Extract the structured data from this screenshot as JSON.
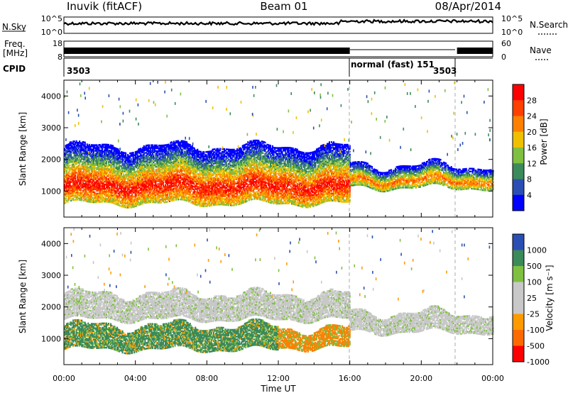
{
  "header": {
    "station": "Inuvik (fitACF)",
    "beam": "Beam 01",
    "date": "08/Apr/2014"
  },
  "noise_panel": {
    "left_label": "N.Sky",
    "right_label": "N.Search",
    "left_ticks": [
      "10^5",
      "10^0"
    ],
    "right_ticks": [
      "10^5",
      "10^0"
    ]
  },
  "freq_panel": {
    "left_label_1": "Freq.",
    "left_label_2": "[MHz]",
    "right_label": "Nave",
    "left_ticks": [
      "18",
      "8"
    ],
    "right_ticks": [
      "60",
      "0"
    ]
  },
  "cpid_panel": {
    "label": "CPID",
    "segments": [
      {
        "text": "3503",
        "start_h": 0,
        "end_h": 16
      },
      {
        "text": "normal (fast) 151",
        "start_h": 16,
        "end_h": 22
      },
      {
        "text": "3503",
        "start_h": 22,
        "end_h": 24
      }
    ]
  },
  "x_axis": {
    "label": "Time UT",
    "ticks": [
      "00:00",
      "04:00",
      "08:00",
      "12:00",
      "16:00",
      "20:00",
      "00:00"
    ]
  },
  "power_panel": {
    "ylabel": "Slant Range [km]",
    "yticks": [
      "4000",
      "3000",
      "2000",
      "1000"
    ],
    "colorbar_label": "Power [dB]",
    "colorbar_ticks": [
      "28",
      "24",
      "20",
      "16",
      "12",
      "8",
      "4"
    ]
  },
  "velocity_panel": {
    "ylabel": "Slant Range [km]",
    "yticks": [
      "4000",
      "3000",
      "2000",
      "1000"
    ],
    "colorbar_label": "Velocity [m s⁻¹]",
    "colorbar_ticks": [
      "1000",
      "500",
      "100",
      "25",
      "-25",
      "-100",
      "-500",
      "-1000"
    ]
  },
  "chart_data": [
    {
      "type": "heatmap",
      "quantity": "Power",
      "x_range_hours": [
        0,
        24
      ],
      "y_range_km": [
        180,
        4500
      ],
      "color_scale_dB": [
        0,
        32
      ],
      "colors": [
        "#0000ff",
        "#2a4fb4",
        "#3a8a5a",
        "#7fc040",
        "#f0c000",
        "#ff8000",
        "#ff4000",
        "#ff0000"
      ],
      "vertical_markers_h": [
        16,
        22
      ],
      "bands": [
        {
          "t_start": 0,
          "t_end": 16,
          "range_km": [
            600,
            2400
          ],
          "peak_dB": 28
        },
        {
          "t_start": 16,
          "t_end": 24,
          "range_km": [
            1100,
            1800
          ],
          "peak_dB": 22
        }
      ]
    },
    {
      "type": "heatmap",
      "quantity": "Velocity",
      "x_range_hours": [
        0,
        24
      ],
      "y_range_km": [
        180,
        4500
      ],
      "color_scale_ms": [
        -1000,
        1000
      ],
      "colors": [
        "#ff0000",
        "#ff6a00",
        "#ff9a00",
        "#c8c8c8",
        "#c8c8c8",
        "#7fc040",
        "#3a8a5a",
        "#2a4fb4"
      ],
      "vertical_markers_h": [
        16,
        22
      ],
      "bands": [
        {
          "t_start": 0,
          "t_end": 16,
          "range_km": [
            1600,
            2400
          ],
          "velocity": 0
        },
        {
          "t_start": 0,
          "t_end": 12,
          "range_km": [
            650,
            1400
          ],
          "velocity": 200
        },
        {
          "t_start": 12,
          "t_end": 16,
          "range_km": [
            700,
            1300
          ],
          "velocity": -200
        },
        {
          "t_start": 16,
          "t_end": 24,
          "range_km": [
            1200,
            1800
          ],
          "velocity": 0
        }
      ]
    }
  ]
}
